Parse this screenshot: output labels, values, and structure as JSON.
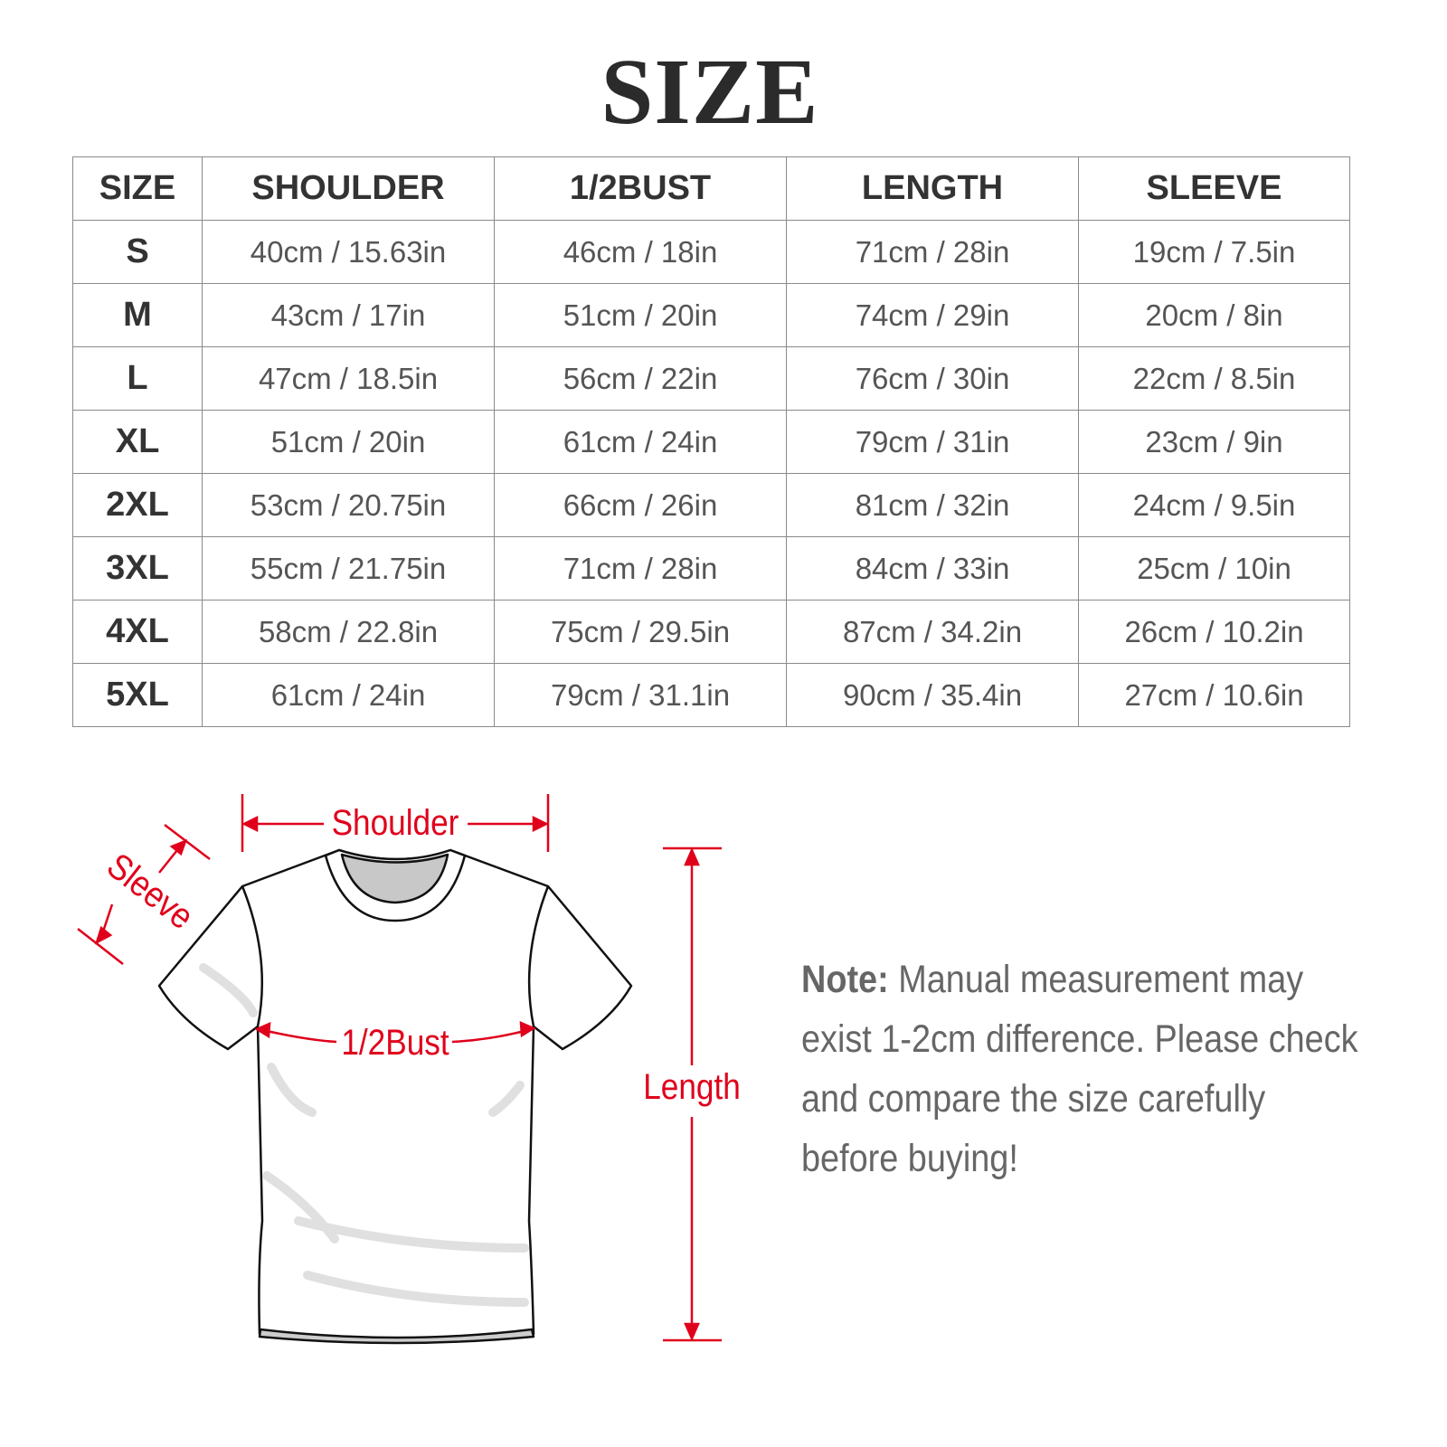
{
  "title": "SIZE",
  "table": {
    "headers": [
      "SIZE",
      "SHOULDER",
      "1/2BUST",
      "LENGTH",
      "SLEEVE"
    ],
    "rows": [
      [
        "S",
        "40cm / 15.63in",
        "46cm / 18in",
        "71cm / 28in",
        "19cm / 7.5in"
      ],
      [
        "M",
        "43cm / 17in",
        "51cm / 20in",
        "74cm / 29in",
        "20cm / 8in"
      ],
      [
        "L",
        "47cm / 18.5in",
        "56cm / 22in",
        "76cm / 30in",
        "22cm / 8.5in"
      ],
      [
        "XL",
        "51cm / 20in",
        "61cm / 24in",
        "79cm / 31in",
        "23cm / 9in"
      ],
      [
        "2XL",
        "53cm / 20.75in",
        "66cm / 26in",
        "81cm / 32in",
        "24cm / 9.5in"
      ],
      [
        "3XL",
        "55cm / 21.75in",
        "71cm / 28in",
        "84cm / 33in",
        "25cm / 10in"
      ],
      [
        "4XL",
        "58cm / 22.8in",
        "75cm / 29.5in",
        "87cm / 34.2in",
        "26cm / 10.2in"
      ],
      [
        "5XL",
        "61cm / 24in",
        "79cm / 31.1in",
        "90cm / 35.4in",
        "27cm / 10.6in"
      ]
    ]
  },
  "diagram": {
    "shoulder": "Shoulder",
    "sleeve": "Sleeve",
    "bust": "1/2Bust",
    "length": "Length",
    "accent_color": "#e0001b"
  },
  "note": {
    "label": "Note:",
    "text": "Manual measurement may exist 1-2cm difference. Please check and compare the size carefully before buying!"
  }
}
